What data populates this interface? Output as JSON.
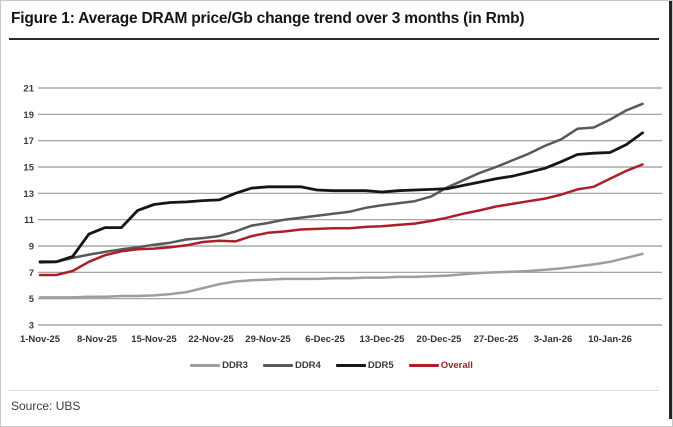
{
  "title": "Figure 1: Average DRAM price/Gb change trend over 3 months (in Rmb)",
  "source": "Source: UBS",
  "chart_data": {
    "type": "line",
    "title": "Average DRAM price/Gb change trend over 3 months (in Rmb)",
    "xlabel": "",
    "ylabel": "",
    "grid": "horizontal",
    "legend_position": "bottom",
    "ylim": [
      3,
      21
    ],
    "y_ticks": [
      21,
      19,
      17,
      15,
      13,
      11,
      9,
      7,
      5,
      3
    ],
    "x_tick_labels": [
      "1-Nov-25",
      "8-Nov-25",
      "15-Nov-25",
      "22-Nov-25",
      "29-Nov-25",
      "6-Dec-25",
      "13-Dec-25",
      "20-Dec-25",
      "27-Dec-25",
      "3-Jan-26",
      "10-Jan-26"
    ],
    "x_tick_days": [
      0,
      7,
      14,
      21,
      28,
      35,
      42,
      49,
      56,
      63,
      70
    ],
    "x_days": [
      0,
      2,
      4,
      6,
      8,
      10,
      12,
      14,
      16,
      18,
      20,
      22,
      24,
      26,
      28,
      30,
      32,
      34,
      36,
      38,
      40,
      42,
      44,
      46,
      48,
      50,
      52,
      54,
      56,
      58,
      60,
      62,
      64,
      66,
      68,
      70,
      72,
      74
    ],
    "series": [
      {
        "name": "DDR3",
        "color": "#9e9e9e",
        "label_color": "#3a3a3a",
        "values": [
          5.1,
          5.1,
          5.1,
          5.15,
          5.15,
          5.2,
          5.2,
          5.25,
          5.35,
          5.5,
          5.8,
          6.1,
          6.3,
          6.4,
          6.45,
          6.5,
          6.5,
          6.5,
          6.55,
          6.55,
          6.6,
          6.6,
          6.65,
          6.65,
          6.7,
          6.75,
          6.85,
          6.95,
          7.0,
          7.05,
          7.1,
          7.2,
          7.3,
          7.45,
          7.6,
          7.8,
          8.1,
          8.4
        ]
      },
      {
        "name": "DDR4",
        "color": "#595959",
        "label_color": "#3a3a3a",
        "values": [
          7.75,
          7.8,
          8.1,
          8.35,
          8.55,
          8.75,
          8.9,
          9.1,
          9.25,
          9.5,
          9.6,
          9.75,
          10.1,
          10.55,
          10.75,
          11.0,
          11.15,
          11.3,
          11.45,
          11.6,
          11.9,
          12.1,
          12.25,
          12.4,
          12.75,
          13.45,
          14.0,
          14.55,
          15.0,
          15.5,
          16.0,
          16.6,
          17.1,
          17.9,
          18.0,
          18.6,
          19.3,
          19.8
        ]
      },
      {
        "name": "DDR5",
        "color": "#161616",
        "label_color": "#3a3a3a",
        "values": [
          7.8,
          7.8,
          8.2,
          9.9,
          10.4,
          10.4,
          11.7,
          12.15,
          12.3,
          12.35,
          12.45,
          12.5,
          13.0,
          13.4,
          13.5,
          13.5,
          13.5,
          13.25,
          13.2,
          13.2,
          13.2,
          13.1,
          13.2,
          13.25,
          13.3,
          13.35,
          13.6,
          13.85,
          14.1,
          14.3,
          14.6,
          14.9,
          15.4,
          15.95,
          16.05,
          16.1,
          16.7,
          17.6
        ]
      },
      {
        "name": "Overall",
        "color": "#ad1f28",
        "label_color": "#99242c",
        "values": [
          6.8,
          6.8,
          7.1,
          7.8,
          8.3,
          8.6,
          8.75,
          8.8,
          8.9,
          9.05,
          9.3,
          9.4,
          9.35,
          9.75,
          10.0,
          10.1,
          10.25,
          10.3,
          10.35,
          10.35,
          10.45,
          10.5,
          10.6,
          10.7,
          10.9,
          11.15,
          11.45,
          11.7,
          12.0,
          12.2,
          12.4,
          12.6,
          12.9,
          13.3,
          13.5,
          14.1,
          14.7,
          15.2
        ]
      }
    ],
    "colors": {
      "gridline": "#999999",
      "axis_label": "#3d3d3d",
      "title_rule": "#2a2a2a"
    }
  }
}
